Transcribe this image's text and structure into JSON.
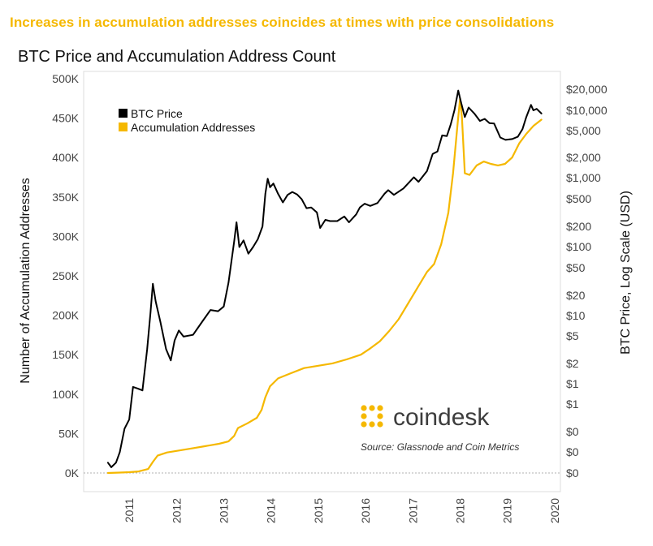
{
  "headline": "Increases in accumulation addresses coincides at times with price consolidations",
  "chart_data": {
    "type": "line",
    "title": "BTC Price and Accumulation Address Count",
    "ylabel": "Number of Accumulation Addresses",
    "y2label": "BTC Price, Log Scale (USD)",
    "ylim": [
      0,
      500000
    ],
    "x_ticks": [
      "2011",
      "2012",
      "2013",
      "2014",
      "2015",
      "2016",
      "2017",
      "2018",
      "2019",
      "2020"
    ],
    "y_ticks": [
      "0K",
      "50K",
      "100K",
      "150K",
      "200K",
      "250K",
      "300K",
      "350K",
      "400K",
      "450K",
      "500K"
    ],
    "y2_ticks": [
      "$20,000",
      "$10,000",
      "$5,000",
      "$2,000",
      "$1,000",
      "$500",
      "$200",
      "$100",
      "$50",
      "$20",
      "$10",
      "$5",
      "$2",
      "$1",
      "$1",
      "$0",
      "$0",
      "$0"
    ],
    "legend_position": "top-left",
    "grid": false,
    "series": [
      {
        "name": "BTC Price",
        "color": "#000000",
        "axis": "right",
        "points": [
          [
            2010.55,
            0.07
          ],
          [
            2010.62,
            0.06
          ],
          [
            2010.72,
            0.07
          ],
          [
            2010.8,
            0.1
          ],
          [
            2010.9,
            0.22
          ],
          [
            2011.0,
            0.3
          ],
          [
            2011.08,
            0.9
          ],
          [
            2011.18,
            0.85
          ],
          [
            2011.28,
            0.8
          ],
          [
            2011.38,
            3.2
          ],
          [
            2011.45,
            11.0
          ],
          [
            2011.5,
            29.0
          ],
          [
            2011.56,
            16.0
          ],
          [
            2011.66,
            8.0
          ],
          [
            2011.78,
            3.2
          ],
          [
            2011.88,
            2.2
          ],
          [
            2011.96,
            4.3
          ],
          [
            2012.05,
            6.0
          ],
          [
            2012.15,
            4.9
          ],
          [
            2012.35,
            5.2
          ],
          [
            2012.55,
            8.2
          ],
          [
            2012.72,
            12.0
          ],
          [
            2012.88,
            11.5
          ],
          [
            2013.0,
            13.5
          ],
          [
            2013.1,
            30.0
          ],
          [
            2013.22,
            120.0
          ],
          [
            2013.27,
            230.0
          ],
          [
            2013.33,
            100.0
          ],
          [
            2013.42,
            125.0
          ],
          [
            2013.52,
            80.0
          ],
          [
            2013.62,
            100.0
          ],
          [
            2013.72,
            130.0
          ],
          [
            2013.82,
            200.0
          ],
          [
            2013.88,
            600.0
          ],
          [
            2013.93,
            1000.0
          ],
          [
            2013.98,
            750.0
          ],
          [
            2014.05,
            850.0
          ],
          [
            2014.15,
            600.0
          ],
          [
            2014.25,
            450.0
          ],
          [
            2014.35,
            580.0
          ],
          [
            2014.45,
            640.0
          ],
          [
            2014.55,
            590.0
          ],
          [
            2014.65,
            500.0
          ],
          [
            2014.75,
            370.0
          ],
          [
            2014.85,
            380.0
          ],
          [
            2014.97,
            320.0
          ],
          [
            2015.04,
            190.0
          ],
          [
            2015.15,
            250.0
          ],
          [
            2015.25,
            240.0
          ],
          [
            2015.4,
            240.0
          ],
          [
            2015.55,
            280.0
          ],
          [
            2015.65,
            230.0
          ],
          [
            2015.8,
            300.0
          ],
          [
            2015.88,
            380.0
          ],
          [
            2015.98,
            430.0
          ],
          [
            2016.1,
            400.0
          ],
          [
            2016.25,
            440.0
          ],
          [
            2016.4,
            600.0
          ],
          [
            2016.48,
            680.0
          ],
          [
            2016.6,
            580.0
          ],
          [
            2016.8,
            720.0
          ],
          [
            2016.97,
            960.0
          ],
          [
            2017.02,
            1050.0
          ],
          [
            2017.12,
            900.0
          ],
          [
            2017.3,
            1300.0
          ],
          [
            2017.42,
            2300.0
          ],
          [
            2017.52,
            2500.0
          ],
          [
            2017.62,
            4300.0
          ],
          [
            2017.72,
            4200.0
          ],
          [
            2017.8,
            6200.0
          ],
          [
            2017.88,
            10000.0
          ],
          [
            2017.96,
            19500.0
          ],
          [
            2018.02,
            13000.0
          ],
          [
            2018.1,
            8000.0
          ],
          [
            2018.18,
            11000.0
          ],
          [
            2018.3,
            9000.0
          ],
          [
            2018.42,
            7000.0
          ],
          [
            2018.52,
            7500.0
          ],
          [
            2018.62,
            6500.0
          ],
          [
            2018.72,
            6400.0
          ],
          [
            2018.85,
            4000.0
          ],
          [
            2018.96,
            3700.0
          ],
          [
            2019.1,
            3800.0
          ],
          [
            2019.22,
            4100.0
          ],
          [
            2019.32,
            5300.0
          ],
          [
            2019.4,
            8000.0
          ],
          [
            2019.5,
            12000.0
          ],
          [
            2019.55,
            10000.0
          ],
          [
            2019.62,
            10500.0
          ],
          [
            2019.72,
            9000.0
          ]
        ]
      },
      {
        "name": "Accumulation Addresses",
        "color": "#F5B800",
        "axis": "left",
        "points": [
          [
            2010.55,
            0
          ],
          [
            2010.8,
            500
          ],
          [
            2011.0,
            1000
          ],
          [
            2011.2,
            2000
          ],
          [
            2011.4,
            5000
          ],
          [
            2011.5,
            14000
          ],
          [
            2011.6,
            22000
          ],
          [
            2011.8,
            26000
          ],
          [
            2012.0,
            28000
          ],
          [
            2012.3,
            31000
          ],
          [
            2012.6,
            34000
          ],
          [
            2012.9,
            37000
          ],
          [
            2013.1,
            40000
          ],
          [
            2013.22,
            47000
          ],
          [
            2013.3,
            57000
          ],
          [
            2013.5,
            63000
          ],
          [
            2013.7,
            70000
          ],
          [
            2013.8,
            80000
          ],
          [
            2013.88,
            96000
          ],
          [
            2013.98,
            110000
          ],
          [
            2014.15,
            120000
          ],
          [
            2014.4,
            126000
          ],
          [
            2014.7,
            133000
          ],
          [
            2015.0,
            136000
          ],
          [
            2015.3,
            139000
          ],
          [
            2015.6,
            144000
          ],
          [
            2015.9,
            150000
          ],
          [
            2016.1,
            158000
          ],
          [
            2016.3,
            167000
          ],
          [
            2016.5,
            180000
          ],
          [
            2016.7,
            195000
          ],
          [
            2016.9,
            215000
          ],
          [
            2017.1,
            235000
          ],
          [
            2017.3,
            255000
          ],
          [
            2017.45,
            265000
          ],
          [
            2017.6,
            290000
          ],
          [
            2017.75,
            330000
          ],
          [
            2017.85,
            380000
          ],
          [
            2017.95,
            445000
          ],
          [
            2018.0,
            475000
          ],
          [
            2018.04,
            450000
          ],
          [
            2018.1,
            380000
          ],
          [
            2018.2,
            378000
          ],
          [
            2018.35,
            390000
          ],
          [
            2018.5,
            395000
          ],
          [
            2018.65,
            392000
          ],
          [
            2018.8,
            390000
          ],
          [
            2018.95,
            392000
          ],
          [
            2019.1,
            400000
          ],
          [
            2019.25,
            418000
          ],
          [
            2019.4,
            430000
          ],
          [
            2019.55,
            440000
          ],
          [
            2019.72,
            448000
          ]
        ]
      }
    ]
  },
  "logo": {
    "text": "coindesk",
    "color": "#F5B800"
  },
  "source": "Source: Glassnode and Coin Metrics"
}
